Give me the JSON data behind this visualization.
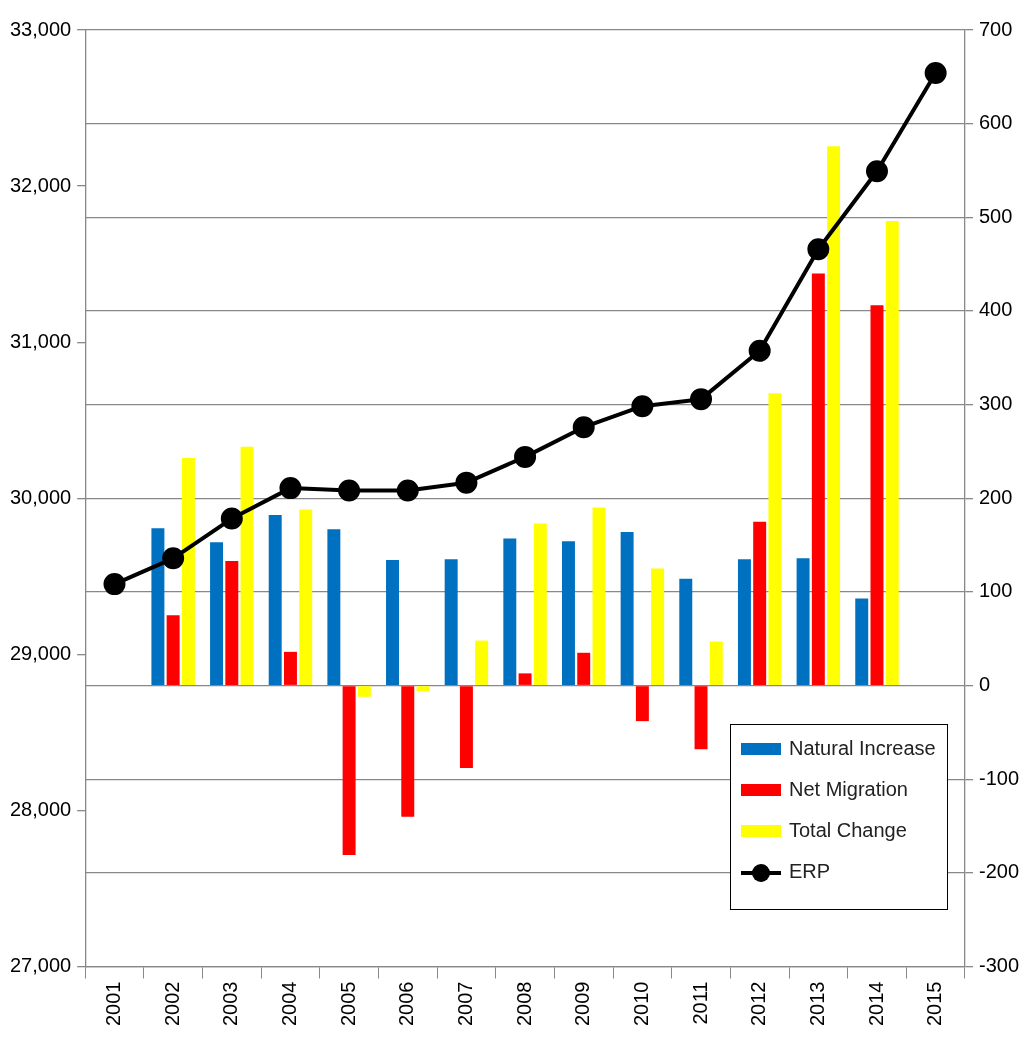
{
  "chart_data": {
    "type": "bar",
    "categories": [
      "2001",
      "2002",
      "2003",
      "2004",
      "2005",
      "2006",
      "2007",
      "2008",
      "2009",
      "2010",
      "2011",
      "2012",
      "2013",
      "2014",
      "2015"
    ],
    "series": [
      {
        "name": "Natural Increase",
        "axis": "y2",
        "color": "#0070c0",
        "values": [
          null,
          168,
          153,
          182,
          167,
          134,
          135,
          157,
          154,
          164,
          114,
          135,
          136,
          93,
          null
        ]
      },
      {
        "name": "Net Migration",
        "axis": "y2",
        "color": "#ff0000",
        "values": [
          null,
          75,
          133,
          36,
          -181,
          -140,
          -88,
          13,
          35,
          -38,
          -68,
          175,
          440,
          406,
          null
        ]
      },
      {
        "name": "Total Change",
        "axis": "y2",
        "color": "#ffff00",
        "values": [
          null,
          243,
          255,
          188,
          -12,
          -6,
          48,
          173,
          190,
          125,
          47,
          312,
          576,
          496,
          null
        ]
      },
      {
        "name": "ERP",
        "type": "line",
        "axis": "y",
        "color": "#000000",
        "marker": "circle",
        "values": [
          29450,
          29615,
          29870,
          30065,
          30050,
          30050,
          30100,
          30265,
          30455,
          30590,
          30635,
          30945,
          31595,
          32095,
          32725
        ]
      }
    ],
    "ylim": [
      27000,
      33000
    ],
    "yticks": [
      {
        "value": 27000,
        "label": "27,000"
      },
      {
        "value": 28000,
        "label": "28,000"
      },
      {
        "value": 29000,
        "label": "29,000"
      },
      {
        "value": 30000,
        "label": "30,000"
      },
      {
        "value": 31000,
        "label": "31,000"
      },
      {
        "value": 32000,
        "label": "32,000"
      },
      {
        "value": 33000,
        "label": "33,000"
      }
    ],
    "y2lim": [
      -300,
      700
    ],
    "y2ticks": [
      -300,
      -200,
      -100,
      0,
      100,
      200,
      300,
      400,
      500,
      600,
      700
    ],
    "grid": "y2",
    "legend": "bottom right"
  }
}
